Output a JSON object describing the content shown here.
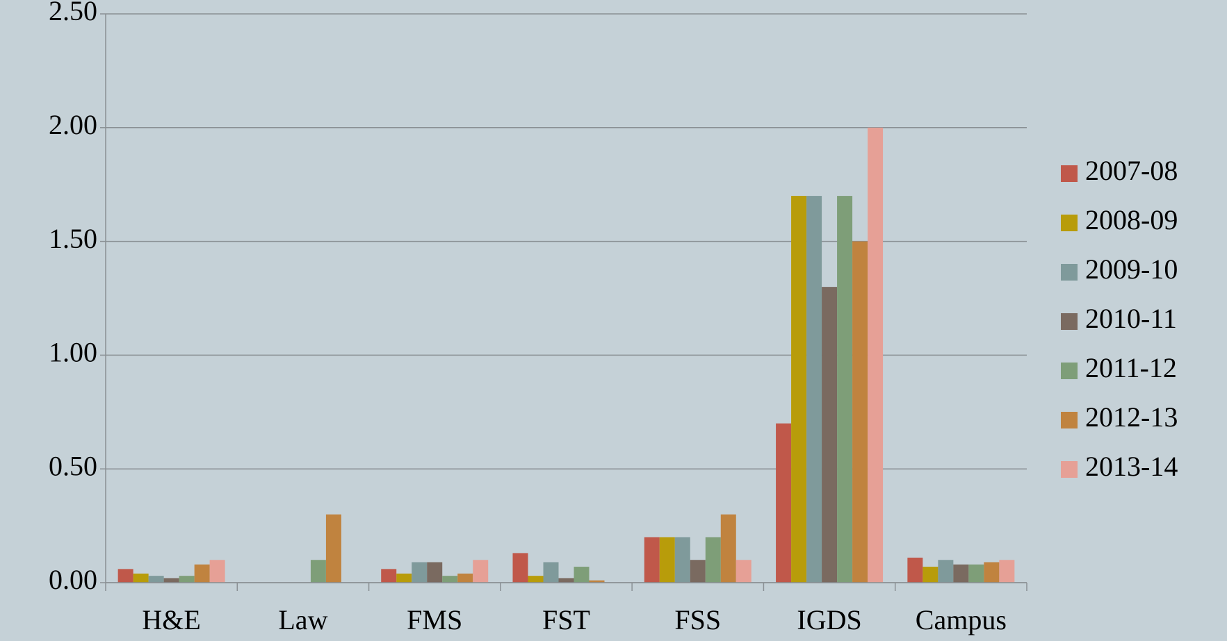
{
  "chart_data": {
    "type": "bar",
    "categories": [
      "H&E",
      "Law",
      "FMS",
      "FST",
      "FSS",
      "IGDS",
      "Campus"
    ],
    "series": [
      {
        "name": "2007-08",
        "color": "#c0584a",
        "values": [
          0.06,
          0,
          0.06,
          0.13,
          0.2,
          0.7,
          0.11
        ]
      },
      {
        "name": "2008-09",
        "color": "#b89c0a",
        "values": [
          0.04,
          0,
          0.04,
          0.03,
          0.2,
          1.7,
          0.07
        ]
      },
      {
        "name": "2009-10",
        "color": "#7f9a9b",
        "values": [
          0.03,
          0,
          0.09,
          0.09,
          0.2,
          1.7,
          0.1
        ]
      },
      {
        "name": "2010-11",
        "color": "#7a6a60",
        "values": [
          0.02,
          0,
          0.09,
          0.02,
          0.1,
          1.3,
          0.08
        ]
      },
      {
        "name": "2011-12",
        "color": "#7e9e78",
        "values": [
          0.03,
          0.1,
          0.03,
          0.07,
          0.2,
          1.7,
          0.08
        ]
      },
      {
        "name": "2012-13",
        "color": "#c0833f",
        "values": [
          0.08,
          0.3,
          0.04,
          0.01,
          0.3,
          1.5,
          0.09
        ]
      },
      {
        "name": "2013-14",
        "color": "#e6a096",
        "values": [
          0.1,
          0,
          0.1,
          0,
          0.1,
          2.0,
          0.1
        ]
      }
    ],
    "ylim": [
      0,
      2.5
    ],
    "yticks": [
      {
        "value": 0,
        "label": "0.00"
      },
      {
        "value": 0.5,
        "label": "0.50"
      },
      {
        "value": 1,
        "label": "1.00"
      },
      {
        "value": 1.5,
        "label": "1.50"
      },
      {
        "value": 2,
        "label": "2.00"
      },
      {
        "value": 2.5,
        "label": "2.50"
      }
    ],
    "grid": true,
    "legend": "right"
  }
}
